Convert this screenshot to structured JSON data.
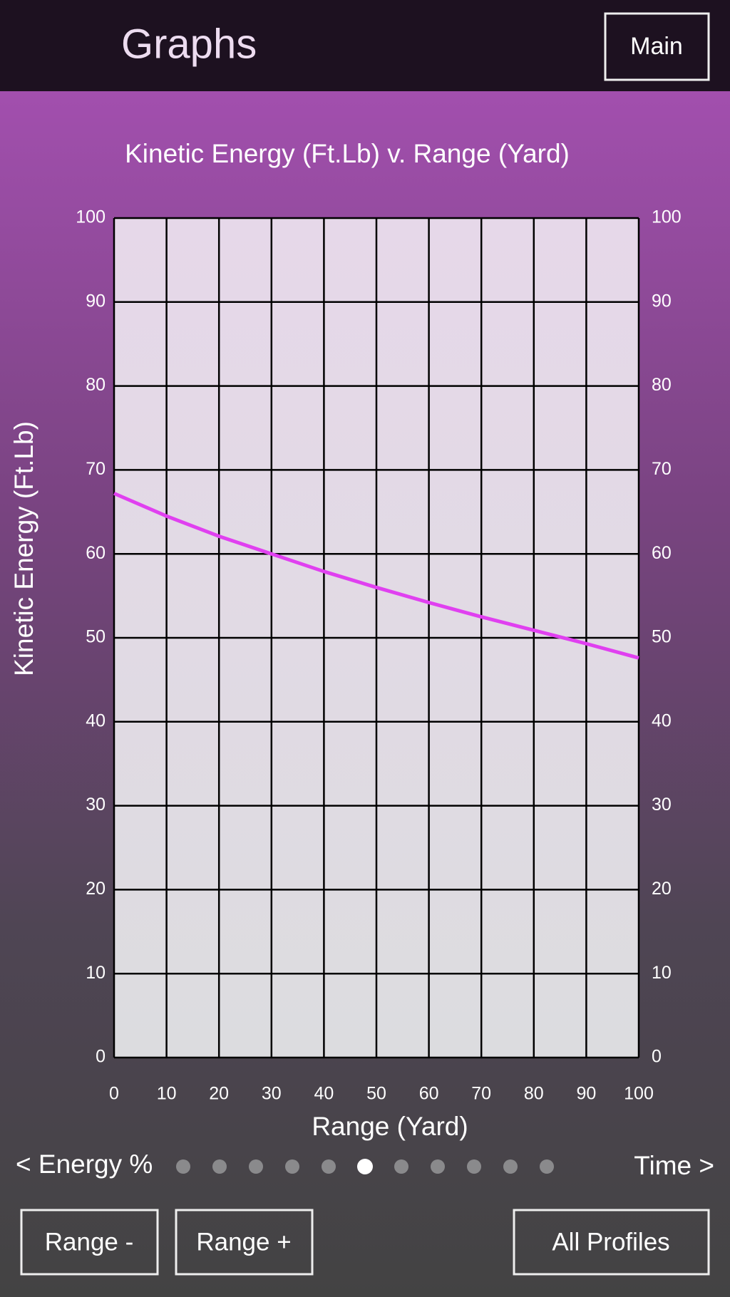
{
  "header": {
    "title": "Graphs",
    "button": "Main"
  },
  "chart_data": {
    "type": "line",
    "title": "Kinetic Energy (Ft.Lb) v. Range (Yard)",
    "x_label": "Range (Yard)",
    "y_label": "Kinetic Energy (Ft.Lb)",
    "x": [
      0,
      10,
      20,
      30,
      40,
      50,
      60,
      70,
      80,
      90,
      100
    ],
    "series": [
      {
        "name": "Kinetic Energy",
        "color": "#e040f0",
        "values": [
          67.2,
          64.5,
          62.1,
          60.0,
          57.9,
          56.0,
          54.2,
          52.5,
          50.9,
          49.3,
          47.6
        ]
      }
    ],
    "xlim": [
      0,
      100
    ],
    "xticks": [
      0,
      10,
      20,
      30,
      40,
      50,
      60,
      70,
      80,
      90,
      100
    ],
    "ylim": [
      0,
      100
    ],
    "yticks": [
      0,
      10,
      20,
      30,
      40,
      50,
      60,
      70,
      80,
      90,
      100
    ],
    "grid": true
  },
  "nav": {
    "prev": "< Energy %",
    "next": "Time >"
  },
  "buttons": [
    "Range -",
    "Range +",
    "All Profiles"
  ]
}
